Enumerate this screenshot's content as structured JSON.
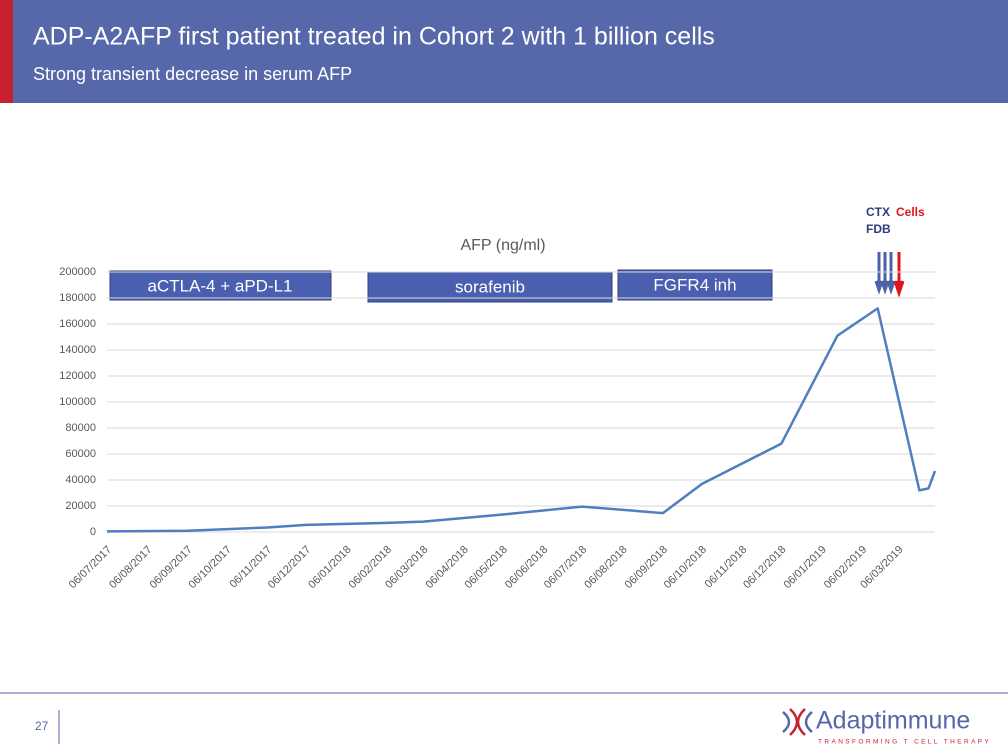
{
  "header": {
    "title": "ADP-A2AFP first patient treated in Cohort 2 with 1 billion cells",
    "subtitle": "Strong transient decrease in serum AFP"
  },
  "chart_data": {
    "type": "line",
    "title": "AFP (ng/ml)",
    "x": [
      "06/07/2017",
      "06/09/2017",
      "06/11/2017",
      "06/12/2017",
      "06/02/2018",
      "06/03/2018",
      "06/05/2018",
      "06/07/2018",
      "06/09/2018",
      "06/10/2018",
      "06/12/2018",
      "18/01/2019",
      "18/02/2019",
      "22/03/2019",
      "29/03/2019",
      "03/04/2019"
    ],
    "values": [
      500,
      1000,
      3500,
      5500,
      7000,
      8000,
      13500,
      19500,
      14500,
      37000,
      68000,
      151000,
      172000,
      32000,
      33500,
      47000
    ],
    "color": "#4f7fbf",
    "xlim": [
      "06/07/2017",
      "03/04/2019"
    ],
    "xticks": [
      "06/07/2017",
      "06/08/2017",
      "06/09/2017",
      "06/10/2017",
      "06/11/2017",
      "06/12/2017",
      "06/01/2018",
      "06/02/2018",
      "06/03/2018",
      "06/04/2018",
      "06/05/2018",
      "06/06/2018",
      "06/07/2018",
      "06/08/2018",
      "06/09/2018",
      "06/10/2018",
      "06/11/2018",
      "06/12/2018",
      "06/01/2019",
      "06/02/2019",
      "06/03/2019"
    ],
    "ylim": [
      0,
      200000
    ],
    "yticks": [
      0,
      20000,
      40000,
      60000,
      80000,
      100000,
      120000,
      140000,
      160000,
      180000,
      200000
    ],
    "grid": true,
    "annotations": [
      "aCTLA-4 + aPD-L1",
      "sorafenib",
      "FGFR4 inh"
    ],
    "dosing_labels": [
      "CTX",
      "Cells",
      "FDB"
    ]
  },
  "footer": {
    "page": "27",
    "logo": "Adaptimmune",
    "tagline": "TRANSFORMING T CELL THERAPY"
  }
}
